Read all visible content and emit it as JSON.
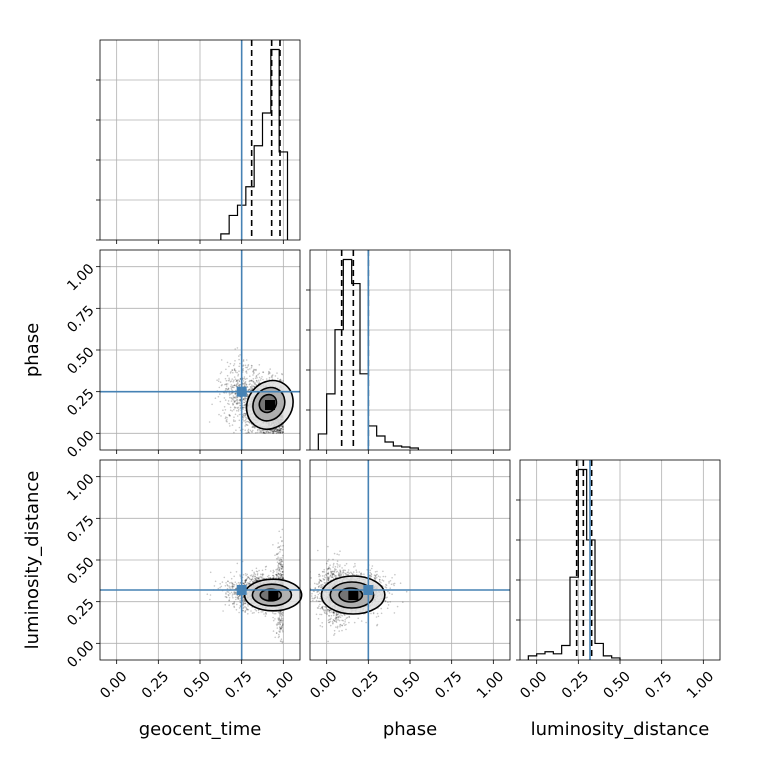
{
  "chart_data": {
    "type": "corner",
    "parameters": [
      "geocent_time",
      "phase",
      "luminosity_distance"
    ],
    "axis_range": [
      -0.1,
      1.1
    ],
    "tick_labels": [
      "0.00",
      "0.25",
      "0.50",
      "0.75",
      "1.00"
    ],
    "tick_values": [
      0.0,
      0.25,
      0.5,
      0.75,
      1.0
    ],
    "grid": true,
    "truths": {
      "geocent_time": 0.75,
      "phase": 0.25,
      "luminosity_distance": 0.32
    },
    "truth_color": "#4682b4",
    "quantiles": {
      "geocent_time": [
        0.81,
        0.93,
        0.98
      ],
      "phase": [
        0.09,
        0.16,
        0.25
      ],
      "luminosity_distance": [
        0.24,
        0.28,
        0.33
      ]
    },
    "histograms": {
      "geocent_time": {
        "bin_edges": [
          0.625,
          0.675,
          0.725,
          0.775,
          0.825,
          0.875,
          0.925,
          0.975,
          1.025
        ],
        "counts": [
          0.03,
          0.12,
          0.17,
          0.26,
          0.46,
          0.62,
          0.93,
          0.43
        ]
      },
      "phase": {
        "bin_edges": [
          -0.05,
          0.0,
          0.05,
          0.1,
          0.15,
          0.2,
          0.25,
          0.3,
          0.35,
          0.4,
          0.45,
          0.5,
          0.55
        ],
        "counts": [
          0.08,
          0.28,
          0.6,
          0.95,
          0.83,
          0.38,
          0.12,
          0.07,
          0.04,
          0.02,
          0.015,
          0.01
        ]
      },
      "luminosity_distance": {
        "bin_edges": [
          -0.05,
          0.0,
          0.05,
          0.1,
          0.15,
          0.2,
          0.25,
          0.3,
          0.35,
          0.4,
          0.45,
          0.5
        ],
        "counts": [
          0.02,
          0.03,
          0.04,
          0.03,
          0.07,
          0.4,
          0.92,
          0.58,
          0.08,
          0.02,
          0.01
        ]
      }
    },
    "scatter_clouds": {
      "phase_vs_geocent_time": [
        {
          "cx": 0.9,
          "cy": 0.17,
          "sx": 0.07,
          "sy": 0.08,
          "n": 1400
        },
        {
          "cx": 0.74,
          "cy": 0.25,
          "sx": 0.06,
          "sy": 0.1,
          "n": 400
        },
        {
          "cx": 0.96,
          "cy": 0.08,
          "sx": 0.03,
          "sy": 0.05,
          "n": 400
        }
      ],
      "luminosity_distance_vs_geocent_time": [
        {
          "cx": 0.86,
          "cy": 0.31,
          "sx": 0.09,
          "sy": 0.05,
          "n": 1500
        },
        {
          "cx": 0.98,
          "cy": 0.3,
          "sx": 0.015,
          "sy": 0.15,
          "n": 350
        }
      ],
      "luminosity_distance_vs_phase": [
        {
          "cx": 0.15,
          "cy": 0.3,
          "sx": 0.1,
          "sy": 0.06,
          "n": 1800
        },
        {
          "cx": 0.05,
          "cy": 0.3,
          "sx": 0.04,
          "sy": 0.11,
          "n": 400
        }
      ]
    },
    "density_peaks": {
      "phase_vs_geocent_time": [
        0.92,
        0.17
      ],
      "luminosity_distance_vs_geocent_time": [
        0.94,
        0.29
      ],
      "luminosity_distance_vs_phase": [
        0.16,
        0.29
      ]
    }
  }
}
